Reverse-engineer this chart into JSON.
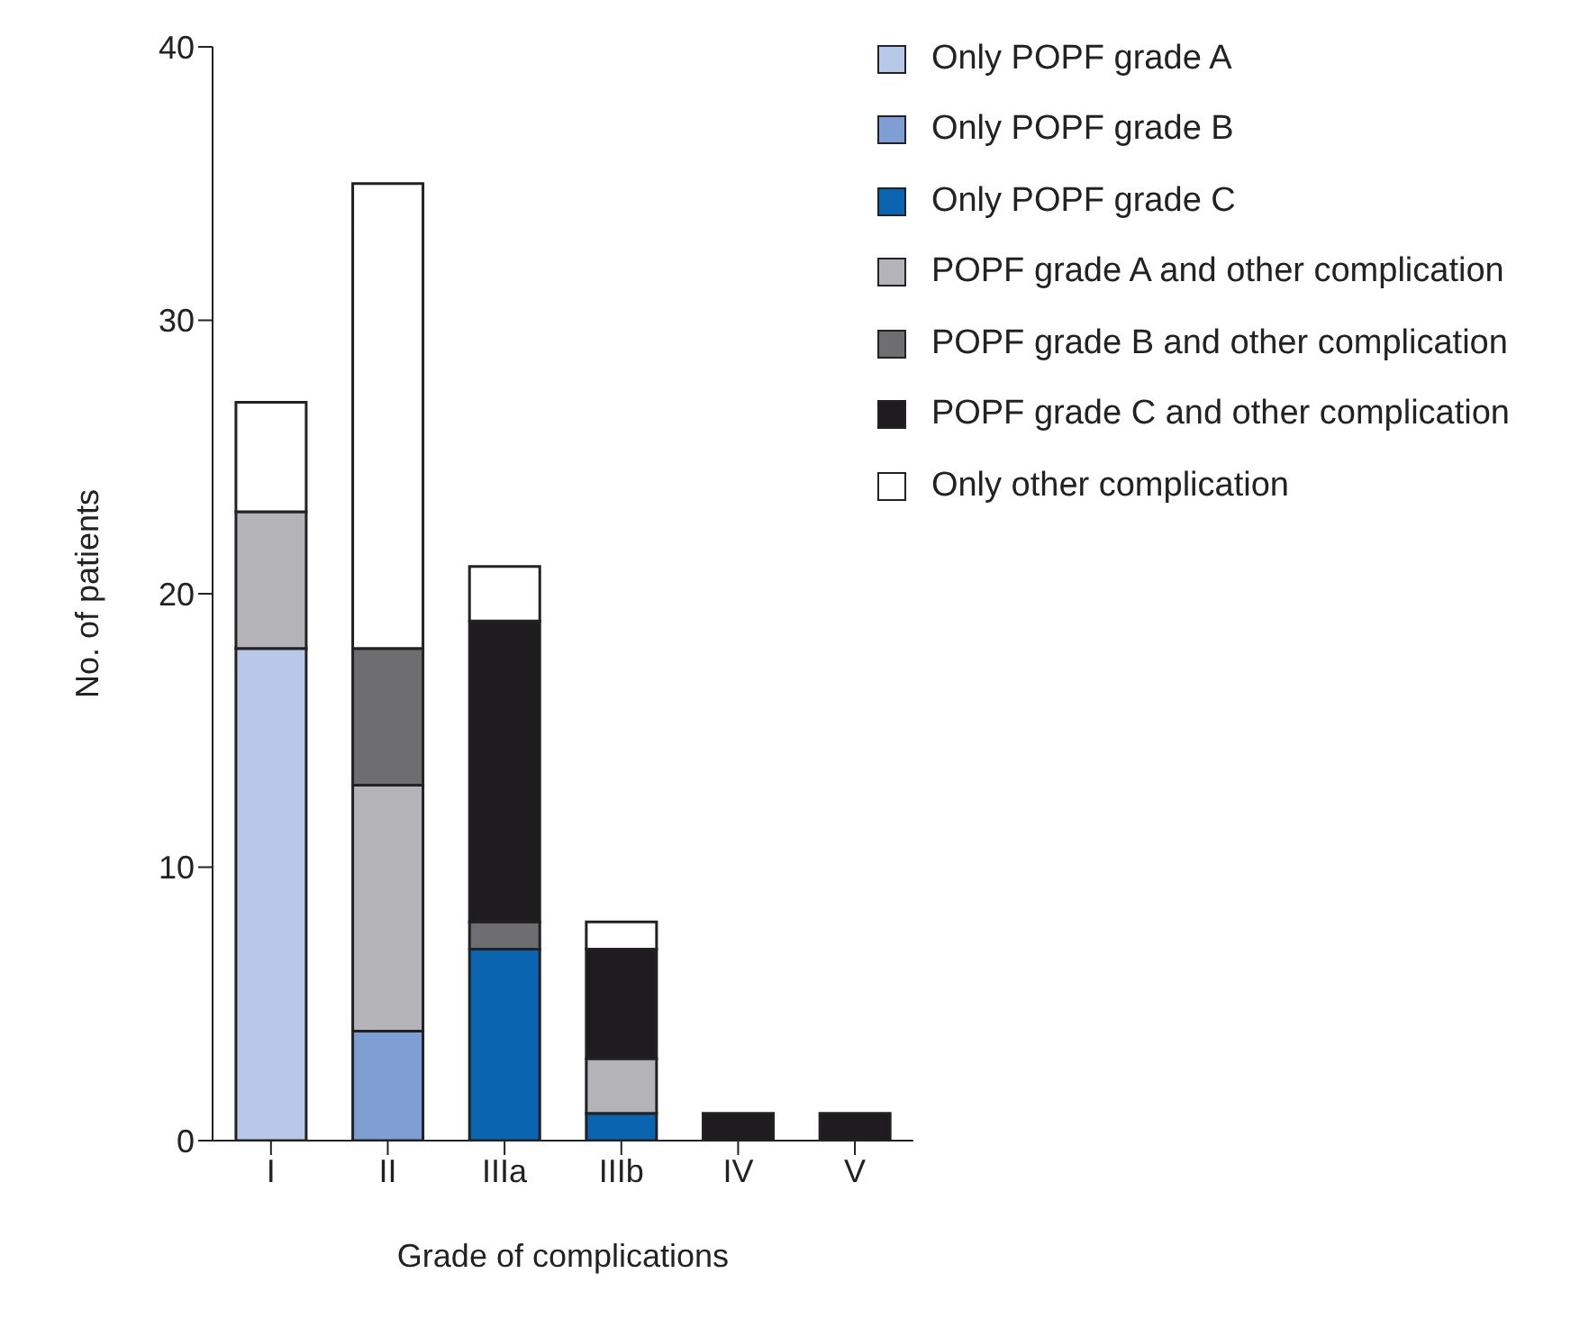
{
  "chart_data": {
    "type": "bar",
    "stacked": true,
    "xlabel": "Grade of complications",
    "ylabel": "No. of patients",
    "categories": [
      "I",
      "II",
      "IIIa",
      "IIIb",
      "IV",
      "V"
    ],
    "ylim": [
      0,
      40
    ],
    "yticks": [
      0,
      10,
      20,
      30,
      40
    ],
    "grid": false,
    "legend": "top right",
    "series": [
      {
        "name": "Only POPF grade A",
        "color": "#b8c8e8",
        "values": [
          18,
          0,
          0,
          0,
          0,
          0
        ]
      },
      {
        "name": "Only POPF grade B",
        "color": "#7f9fd4",
        "values": [
          0,
          4,
          0,
          0,
          0,
          0
        ]
      },
      {
        "name": "Only POPF grade C",
        "color": "#0a64b0",
        "values": [
          0,
          0,
          7,
          1,
          0,
          0
        ]
      },
      {
        "name": "POPF grade A and other complication",
        "color": "#b4b4b8",
        "values": [
          5,
          9,
          0,
          2,
          0,
          0
        ]
      },
      {
        "name": "POPF grade B and other complication",
        "color": "#6e6e70",
        "values": [
          0,
          5,
          1,
          0,
          0,
          0
        ]
      },
      {
        "name": "POPF grade C and other complication",
        "color": "#1e1c1e",
        "values": [
          0,
          0,
          11,
          4,
          1,
          1
        ]
      },
      {
        "name": "Only other complication",
        "color": "#ffffff",
        "values": [
          4,
          17,
          2,
          1,
          0,
          0
        ]
      }
    ]
  }
}
